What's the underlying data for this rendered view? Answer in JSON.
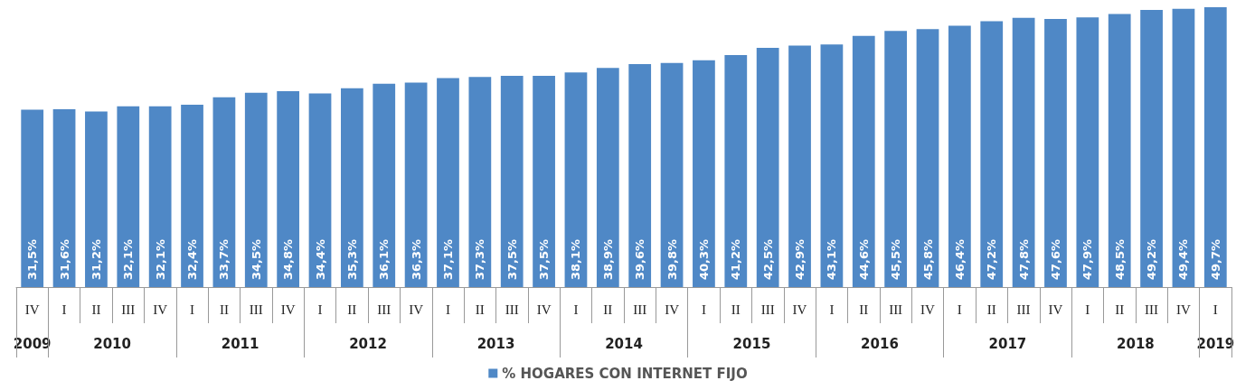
{
  "chart_data": {
    "type": "bar",
    "legend": "bottom",
    "categories": [
      "IV",
      "I",
      "II",
      "III",
      "IV",
      "I",
      "II",
      "III",
      "IV",
      "I",
      "II",
      "III",
      "IV",
      "I",
      "II",
      "III",
      "IV",
      "I",
      "II",
      "III",
      "IV",
      "I",
      "II",
      "III",
      "IV",
      "I",
      "II",
      "III",
      "IV",
      "I",
      "II",
      "III",
      "IV",
      "I",
      "II",
      "III",
      "IV",
      "I"
    ],
    "series": [
      {
        "name": "% HOGARES CON INTERNET FIJO",
        "color": "#4f88c6",
        "values": [
          31.5,
          31.6,
          31.2,
          32.1,
          32.1,
          32.4,
          33.7,
          34.5,
          34.8,
          34.4,
          35.3,
          36.1,
          36.3,
          37.1,
          37.3,
          37.5,
          37.5,
          38.1,
          38.9,
          39.6,
          39.8,
          40.3,
          41.2,
          42.5,
          42.9,
          43.1,
          44.6,
          45.5,
          45.8,
          46.4,
          47.2,
          47.8,
          47.6,
          47.9,
          48.5,
          49.2,
          49.4,
          49.7
        ],
        "value_labels": [
          "31,5%",
          "31,6%",
          "31,2%",
          "32,1%",
          "32,1%",
          "32,4%",
          "33,7%",
          "34,5%",
          "34,8%",
          "34,4%",
          "35,3%",
          "36,1%",
          "36,3%",
          "37,1%",
          "37,3%",
          "37,5%",
          "37,5%",
          "38,1%",
          "38,9%",
          "39,6%",
          "39,8%",
          "40,3%",
          "41,2%",
          "42,5%",
          "42,9%",
          "43,1%",
          "44,6%",
          "45,5%",
          "45,8%",
          "46,4%",
          "47,2%",
          "47,8%",
          "47,6%",
          "47,9%",
          "48,5%",
          "49,2%",
          "49,4%",
          "49,7%"
        ]
      }
    ],
    "annotations": [
      "2009",
      "2010",
      "2011",
      "2012",
      "2013",
      "2014",
      "2015",
      "2016",
      "2017",
      "2018",
      "2019"
    ]
  }
}
